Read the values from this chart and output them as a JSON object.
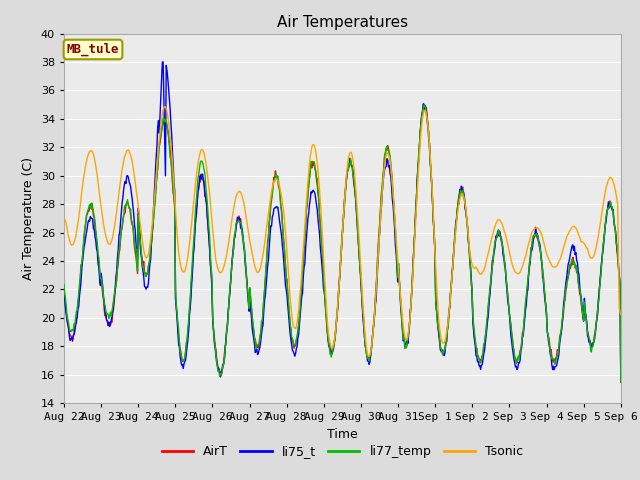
{
  "title": "Air Temperatures",
  "xlabel": "Time",
  "ylabel": "Air Temperature (C)",
  "ylim": [
    14,
    40
  ],
  "annotation_text": "MB_tule",
  "annotation_color": "#8B0000",
  "annotation_bg": "#FFFFCC",
  "annotation_border": "#999900",
  "series_names": [
    "AirT",
    "li75_t",
    "li77_temp",
    "Tsonic"
  ],
  "series_colors": [
    "#FF0000",
    "#0000FF",
    "#00BB00",
    "#FFA500"
  ],
  "x_tick_labels": [
    "Aug 22",
    "Aug 23",
    "Aug 24",
    "Aug 25",
    "Aug 26",
    "Aug 27",
    "Aug 28",
    "Aug 29",
    "Aug 30",
    "Aug 31",
    "Sep 1",
    "Sep 2",
    "Sep 3",
    "Sep 4",
    "Sep 5",
    "Sep 6"
  ],
  "bg_color": "#DCDCDC",
  "plot_bg_color": "#EBEBEB",
  "grid_color": "#FFFFFF",
  "title_fontsize": 11,
  "axis_label_fontsize": 9,
  "tick_label_fontsize": 8,
  "legend_fontsize": 9,
  "n_days": 15
}
